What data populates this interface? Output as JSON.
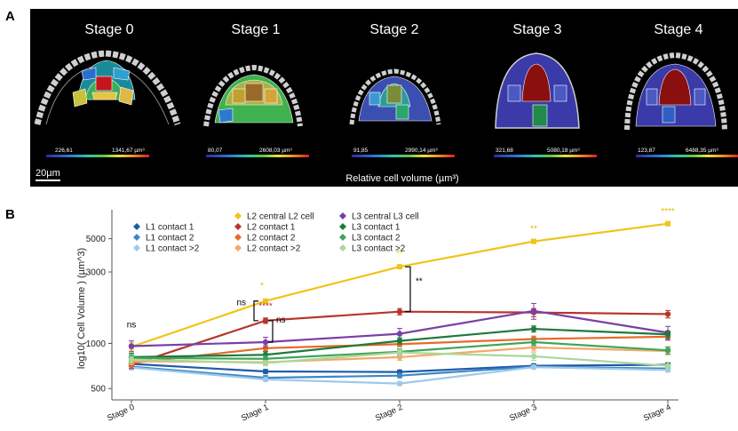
{
  "panel_a": {
    "letter": "A",
    "stages": [
      {
        "title": "Stage 0",
        "range_min": "226,61",
        "range_max": "1341,67 µm³"
      },
      {
        "title": "Stage 1",
        "range_min": "80,07",
        "range_max": "2608,03 µm³"
      },
      {
        "title": "Stage 2",
        "range_min": "91,85",
        "range_max": "2990,14 µm³"
      },
      {
        "title": "Stage 3",
        "range_min": "321,68",
        "range_max": "5080,18 µm³"
      },
      {
        "title": "Stage 4",
        "range_min": "123,87",
        "range_max": "6488,35 µm³"
      }
    ],
    "scale_bar": "20µm",
    "caption": "Relative cell volume (µm³)",
    "colors": {
      "background": "#000000"
    }
  },
  "panel_b": {
    "letter": "B",
    "annotations": [
      {
        "text": "ns",
        "color": "#000000"
      },
      {
        "text": "*",
        "color": "#E6B800"
      },
      {
        "text": "ns",
        "color": "#000000"
      },
      {
        "text": "****",
        "color": "#B8352A"
      },
      {
        "text": "ns",
        "color": "#000000"
      },
      {
        "text": "**",
        "color": "#E6B800"
      },
      {
        "text": "**",
        "color": "#000000"
      },
      {
        "text": "**",
        "color": "#E6B800"
      },
      {
        "text": "****",
        "color": "#E6B800"
      }
    ]
  },
  "chart_data": {
    "type": "line",
    "categories": [
      "Stage 0",
      "Stage 1",
      "Stage 2",
      "Stage 3",
      "Stage 4"
    ],
    "ylabel": "log10( Cell Volume ) (µm^3)",
    "xlabel": "",
    "yscale": "log",
    "ylim": [
      420,
      7000
    ],
    "yticks": [
      {
        "value": 500,
        "label": "500"
      },
      {
        "value": 1000,
        "label": "1000"
      },
      {
        "value": 3000,
        "label": "3000"
      },
      {
        "value": 5000,
        "label": "5000"
      }
    ],
    "grid": false,
    "legend_position": "top-left",
    "series": [
      {
        "name": "L1 contact 1",
        "color": "#1F5BA8",
        "values": [
          730,
          650,
          645,
          710,
          720
        ],
        "err": [
          30,
          20,
          20,
          20,
          20
        ]
      },
      {
        "name": "L1 contact 2",
        "color": "#3F86C6",
        "values": [
          700,
          590,
          610,
          700,
          680
        ],
        "err": [
          25,
          20,
          20,
          20,
          20
        ]
      },
      {
        "name": "L1 contact >2",
        "color": "#9ECAE9",
        "values": [
          690,
          575,
          540,
          695,
          665
        ],
        "err": [
          25,
          15,
          15,
          20,
          20
        ]
      },
      {
        "name": "L2 central L2 cell",
        "color": "#F0C419",
        "values": [
          950,
          1920,
          3250,
          4800,
          6300
        ],
        "err": [
          60,
          60,
          80,
          80,
          100
        ]
      },
      {
        "name": "L2 contact 1",
        "color": "#B8352A",
        "values": [
          720,
          1420,
          1630,
          1610,
          1570
        ],
        "err": [
          40,
          60,
          80,
          100,
          90
        ]
      },
      {
        "name": "L2 contact 2",
        "color": "#E8692A",
        "values": [
          740,
          930,
          990,
          1070,
          1110
        ],
        "err": [
          40,
          40,
          40,
          50,
          60
        ]
      },
      {
        "name": "L2 contact >2",
        "color": "#F4A86A",
        "values": [
          760,
          750,
          810,
          940,
          890
        ],
        "err": [
          40,
          30,
          40,
          50,
          50
        ]
      },
      {
        "name": "L3 central L3 cell",
        "color": "#7A3FA8",
        "values": [
          960,
          1020,
          1160,
          1650,
          1180
        ],
        "err": [
          80,
          80,
          100,
          200,
          120
        ]
      },
      {
        "name": "L3 contact 1",
        "color": "#1E7A3E",
        "values": [
          810,
          840,
          1040,
          1250,
          1150
        ],
        "err": [
          50,
          40,
          50,
          60,
          60
        ]
      },
      {
        "name": "L3 contact 2",
        "color": "#3FA55A",
        "values": [
          800,
          790,
          880,
          1020,
          900
        ],
        "err": [
          40,
          40,
          40,
          50,
          50
        ]
      },
      {
        "name": "L3 contact >2",
        "color": "#A9D89A",
        "values": [
          780,
          740,
          870,
          820,
          710
        ],
        "err": [
          40,
          30,
          40,
          50,
          40
        ]
      }
    ]
  }
}
